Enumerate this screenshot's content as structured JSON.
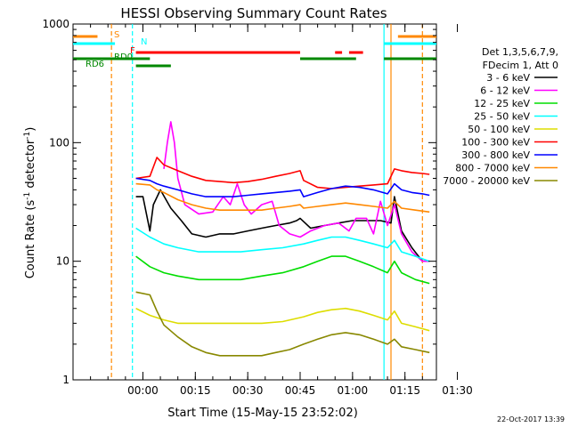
{
  "chart_data": {
    "type": "line",
    "title": "HESSI Observing Summary Count Rates",
    "xlabel": "Start Time (15-May-15 23:52:02)",
    "ylabel_main": "Count Rate (s",
    "ylabel_sup1": "-1",
    "ylabel_mid": " detector",
    "ylabel_sup2": "-1",
    "ylabel_end": ")",
    "y_scale": "log",
    "ylim": [
      1,
      1000
    ],
    "xlim_minutes": [
      -12,
      92
    ],
    "x_ticks": [
      {
        "minutes": 8,
        "label": "00:00"
      },
      {
        "minutes": 23,
        "label": "00:15"
      },
      {
        "minutes": 38,
        "label": "00:30"
      },
      {
        "minutes": 53,
        "label": "00:45"
      },
      {
        "minutes": 68,
        "label": "01:00"
      },
      {
        "minutes": 83,
        "label": "01:15"
      },
      {
        "minutes": 98,
        "label": "01:30"
      }
    ],
    "y_ticks": [
      {
        "value": 1,
        "label": "1"
      },
      {
        "value": 10,
        "label": "10"
      },
      {
        "value": 100,
        "label": "100"
      },
      {
        "value": 1000,
        "label": "1000"
      }
    ],
    "legend_header": [
      "Det 1,3,5,6,7,9,",
      "FDecim 1, Att 0"
    ],
    "series": [
      {
        "name": "3 - 6 keV",
        "color": "#000000",
        "points": [
          [
            6,
            35
          ],
          [
            8,
            35
          ],
          [
            10,
            18
          ],
          [
            11,
            30
          ],
          [
            13,
            40
          ],
          [
            16,
            28
          ],
          [
            19,
            22
          ],
          [
            22,
            17
          ],
          [
            26,
            16
          ],
          [
            30,
            17
          ],
          [
            34,
            17
          ],
          [
            38,
            18
          ],
          [
            42,
            19
          ],
          [
            46,
            20
          ],
          [
            50,
            21
          ],
          [
            52,
            22
          ],
          [
            53,
            23
          ],
          [
            56,
            19
          ],
          [
            60,
            20
          ],
          [
            64,
            21
          ],
          [
            68,
            22
          ],
          [
            72,
            22
          ],
          [
            76,
            22
          ],
          [
            79,
            21
          ],
          [
            80,
            35
          ],
          [
            82,
            18
          ],
          [
            85,
            13
          ],
          [
            88,
            10
          ],
          [
            90,
            10
          ]
        ]
      },
      {
        "name": "6 - 12 keV",
        "color": "#ff00ff",
        "points": [
          [
            14,
            60
          ],
          [
            15,
            100
          ],
          [
            16,
            150
          ],
          [
            17,
            100
          ],
          [
            18,
            50
          ],
          [
            20,
            30
          ],
          [
            24,
            25
          ],
          [
            28,
            26
          ],
          [
            31,
            35
          ],
          [
            33,
            30
          ],
          [
            35,
            45
          ],
          [
            37,
            30
          ],
          [
            39,
            25
          ],
          [
            42,
            30
          ],
          [
            45,
            32
          ],
          [
            47,
            20
          ],
          [
            50,
            17
          ],
          [
            53,
            16
          ],
          [
            56,
            18
          ],
          [
            60,
            20
          ],
          [
            64,
            21
          ],
          [
            67,
            18
          ],
          [
            69,
            23
          ],
          [
            72,
            23
          ],
          [
            74,
            17
          ],
          [
            76,
            32
          ],
          [
            78,
            20
          ],
          [
            80,
            30
          ],
          [
            82,
            17
          ],
          [
            85,
            12
          ],
          [
            88,
            10
          ],
          [
            90,
            10
          ]
        ]
      },
      {
        "name": "12 - 25 keV",
        "color": "#00dd00",
        "points": [
          [
            6,
            11
          ],
          [
            10,
            9
          ],
          [
            14,
            8
          ],
          [
            18,
            7.5
          ],
          [
            24,
            7
          ],
          [
            30,
            7
          ],
          [
            36,
            7
          ],
          [
            42,
            7.5
          ],
          [
            48,
            8
          ],
          [
            54,
            9
          ],
          [
            58,
            10
          ],
          [
            62,
            11
          ],
          [
            66,
            11
          ],
          [
            70,
            10
          ],
          [
            74,
            9
          ],
          [
            78,
            8
          ],
          [
            80,
            10
          ],
          [
            82,
            8
          ],
          [
            86,
            7
          ],
          [
            90,
            6.5
          ]
        ]
      },
      {
        "name": "25 - 50 keV",
        "color": "#00ffff",
        "points": [
          [
            6,
            19
          ],
          [
            10,
            16
          ],
          [
            14,
            14
          ],
          [
            18,
            13
          ],
          [
            24,
            12
          ],
          [
            30,
            12
          ],
          [
            36,
            12
          ],
          [
            42,
            12.5
          ],
          [
            48,
            13
          ],
          [
            54,
            14
          ],
          [
            58,
            15
          ],
          [
            62,
            16
          ],
          [
            66,
            16
          ],
          [
            70,
            15
          ],
          [
            74,
            14
          ],
          [
            78,
            13
          ],
          [
            80,
            15
          ],
          [
            82,
            12
          ],
          [
            86,
            11
          ],
          [
            90,
            10
          ]
        ]
      },
      {
        "name": "50 - 100 keV",
        "color": "#dddd00",
        "points": [
          [
            6,
            4
          ],
          [
            10,
            3.5
          ],
          [
            14,
            3.2
          ],
          [
            18,
            3
          ],
          [
            24,
            3
          ],
          [
            30,
            3
          ],
          [
            36,
            3
          ],
          [
            42,
            3
          ],
          [
            48,
            3.1
          ],
          [
            54,
            3.4
          ],
          [
            58,
            3.7
          ],
          [
            62,
            3.9
          ],
          [
            66,
            4
          ],
          [
            70,
            3.8
          ],
          [
            74,
            3.5
          ],
          [
            78,
            3.2
          ],
          [
            80,
            3.8
          ],
          [
            82,
            3
          ],
          [
            86,
            2.8
          ],
          [
            90,
            2.6
          ]
        ]
      },
      {
        "name": "100 - 300 keV",
        "color": "#ff0000",
        "points": [
          [
            6,
            50
          ],
          [
            10,
            52
          ],
          [
            12,
            75
          ],
          [
            14,
            65
          ],
          [
            18,
            58
          ],
          [
            22,
            52
          ],
          [
            26,
            48
          ],
          [
            30,
            47
          ],
          [
            34,
            46
          ],
          [
            38,
            47
          ],
          [
            42,
            49
          ],
          [
            46,
            52
          ],
          [
            50,
            55
          ],
          [
            53,
            58
          ],
          [
            54,
            48
          ],
          [
            58,
            42
          ],
          [
            62,
            41
          ],
          [
            66,
            42
          ],
          [
            70,
            43
          ],
          [
            74,
            44
          ],
          [
            78,
            45
          ],
          [
            80,
            60
          ],
          [
            82,
            58
          ],
          [
            85,
            56
          ],
          [
            88,
            55
          ],
          [
            90,
            54
          ]
        ]
      },
      {
        "name": "300 - 800 keV",
        "color": "#0000ff",
        "points": [
          [
            6,
            50
          ],
          [
            10,
            48
          ],
          [
            12,
            45
          ],
          [
            14,
            43
          ],
          [
            18,
            40
          ],
          [
            22,
            37
          ],
          [
            26,
            35
          ],
          [
            30,
            35
          ],
          [
            34,
            35
          ],
          [
            38,
            36
          ],
          [
            42,
            37
          ],
          [
            46,
            38
          ],
          [
            50,
            39
          ],
          [
            53,
            40
          ],
          [
            54,
            35
          ],
          [
            58,
            38
          ],
          [
            62,
            41
          ],
          [
            66,
            43
          ],
          [
            70,
            42
          ],
          [
            74,
            40
          ],
          [
            78,
            37
          ],
          [
            80,
            45
          ],
          [
            82,
            40
          ],
          [
            85,
            38
          ],
          [
            88,
            37
          ],
          [
            90,
            36
          ]
        ]
      },
      {
        "name": "800 - 7000 keV",
        "color": "#ff8800",
        "points": [
          [
            6,
            45
          ],
          [
            10,
            44
          ],
          [
            12,
            40
          ],
          [
            14,
            38
          ],
          [
            18,
            33
          ],
          [
            22,
            30
          ],
          [
            26,
            28
          ],
          [
            30,
            27
          ],
          [
            34,
            27
          ],
          [
            38,
            27
          ],
          [
            42,
            27
          ],
          [
            46,
            28
          ],
          [
            50,
            29
          ],
          [
            53,
            30
          ],
          [
            54,
            28
          ],
          [
            58,
            29
          ],
          [
            62,
            30
          ],
          [
            66,
            31
          ],
          [
            70,
            30
          ],
          [
            74,
            29
          ],
          [
            78,
            28
          ],
          [
            80,
            32
          ],
          [
            82,
            28
          ],
          [
            86,
            27
          ],
          [
            90,
            26
          ]
        ]
      },
      {
        "name": "7000 - 20000 keV",
        "color": "#888800",
        "points": [
          [
            6,
            5.5
          ],
          [
            10,
            5.2
          ],
          [
            12,
            3.8
          ],
          [
            14,
            2.9
          ],
          [
            18,
            2.3
          ],
          [
            22,
            1.9
          ],
          [
            26,
            1.7
          ],
          [
            30,
            1.6
          ],
          [
            34,
            1.6
          ],
          [
            38,
            1.6
          ],
          [
            42,
            1.6
          ],
          [
            46,
            1.7
          ],
          [
            50,
            1.8
          ],
          [
            54,
            2
          ],
          [
            58,
            2.2
          ],
          [
            62,
            2.4
          ],
          [
            66,
            2.5
          ],
          [
            70,
            2.4
          ],
          [
            74,
            2.2
          ],
          [
            78,
            2
          ],
          [
            80,
            2.2
          ],
          [
            82,
            1.9
          ],
          [
            86,
            1.8
          ],
          [
            90,
            1.7
          ]
        ]
      }
    ],
    "flag_bars": [
      {
        "name": "S",
        "color": "#ff8800",
        "segments": [
          [
            -12,
            -5
          ],
          [
            81,
            92
          ]
        ]
      },
      {
        "name": "N",
        "color": "#00ffff",
        "segments": [
          [
            -12,
            0
          ],
          [
            77,
            92
          ]
        ]
      },
      {
        "name": "F",
        "color": "#ff0000",
        "segments": [
          [
            6,
            53
          ],
          [
            63,
            65
          ],
          [
            67,
            71
          ]
        ]
      },
      {
        "name": "RD0",
        "color": "#008800",
        "segments": [
          [
            -12,
            10
          ],
          [
            53,
            69
          ],
          [
            77,
            92
          ]
        ]
      },
      {
        "name": "RD6",
        "color": "#008800",
        "segments": [
          [
            6,
            16
          ]
        ]
      }
    ],
    "vlines": [
      {
        "minutes": -1,
        "color": "#ff8800",
        "style": "dashed"
      },
      {
        "minutes": 5,
        "color": "#00ffff",
        "style": "dashed"
      },
      {
        "minutes": 77,
        "color": "#00ffff",
        "style": "solid"
      },
      {
        "minutes": 79,
        "color": "#ff8800",
        "style": "solid"
      },
      {
        "minutes": 88,
        "color": "#ff8800",
        "style": "dashed"
      }
    ],
    "timestamp": "22-Oct-2017 13:39"
  }
}
